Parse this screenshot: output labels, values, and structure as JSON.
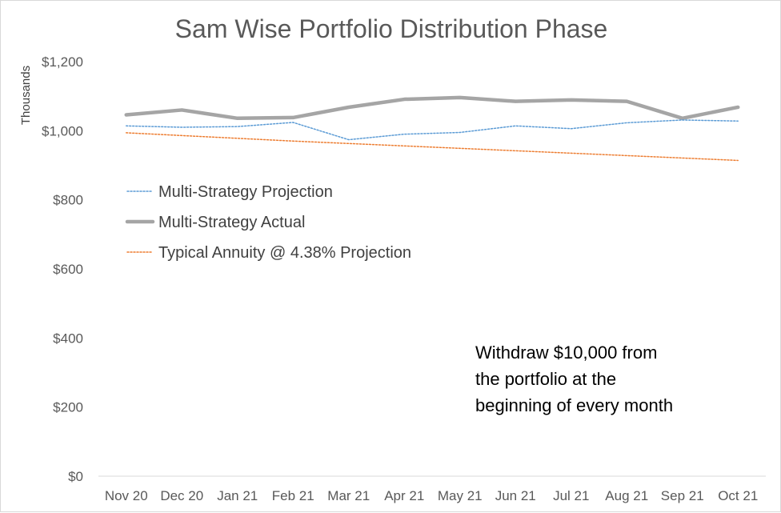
{
  "chart_data": {
    "type": "line",
    "title": "Sam Wise Portfolio Distribution Phase",
    "ylabel": "Thousands",
    "xlabel": "",
    "categories": [
      "Nov 20",
      "Dec 20",
      "Jan 21",
      "Feb 21",
      "Mar 21",
      "Apr 21",
      "May 21",
      "Jun 21",
      "Jul 21",
      "Aug 21",
      "Sep 21",
      "Oct 21"
    ],
    "ylim": [
      0,
      1200
    ],
    "yticks": [
      0,
      200,
      400,
      600,
      800,
      1000,
      1200
    ],
    "ytick_labels": [
      "$0",
      "$200",
      "$400",
      "$600",
      "$800",
      "$1,000",
      "$1,200"
    ],
    "grid": false,
    "legend_position": "upper-left",
    "series": [
      {
        "name": "Multi-Strategy Projection",
        "color": "#5b9bd5",
        "style": "dotted",
        "values": [
          1014,
          1010,
          1012,
          1024,
          974,
          990,
          995,
          1014,
          1006,
          1023,
          1031,
          1028
        ]
      },
      {
        "name": "Multi-Strategy Actual",
        "color": "#a5a5a5",
        "style": "solid-thick",
        "values": [
          1046,
          1060,
          1036,
          1038,
          1068,
          1091,
          1096,
          1085,
          1089,
          1085,
          1036,
          1068
        ]
      },
      {
        "name": "Typical Annuity @ 4.38% Projection",
        "color": "#ed7d31",
        "style": "dotted",
        "values": [
          994,
          986,
          978,
          970,
          963,
          956,
          949,
          942,
          935,
          928,
          921,
          914
        ]
      }
    ],
    "annotation": [
      "Withdraw $10,000 from",
      "the portfolio at the",
      "beginning of every month"
    ]
  }
}
